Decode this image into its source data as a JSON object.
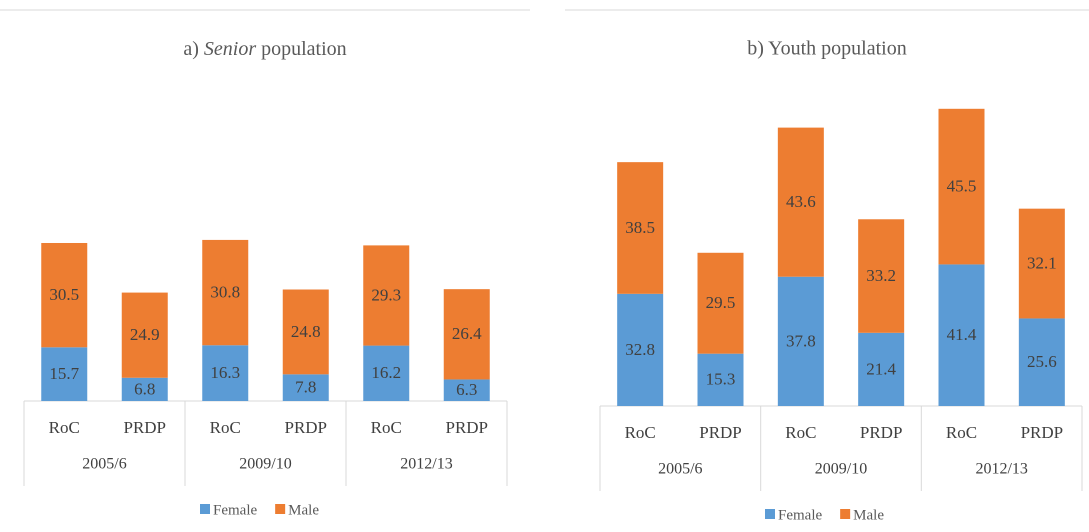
{
  "chart_data": [
    {
      "type": "stacked_bar",
      "title": [
        "a)",
        "Senior",
        "population"
      ],
      "categories": [
        "RoC",
        "PRDP",
        "RoC",
        "PRDP",
        "RoC",
        "PRDP"
      ],
      "groups": [
        "2005/6",
        "2009/10",
        "2012/13"
      ],
      "series": [
        {
          "name": "Female",
          "color": "#5b9bd5",
          "values": [
            15.7,
            6.8,
            16.3,
            7.8,
            16.2,
            6.3
          ]
        },
        {
          "name": "Male",
          "color": "#ed7d31",
          "values": [
            30.5,
            24.9,
            30.8,
            24.8,
            29.3,
            26.4
          ]
        }
      ]
    },
    {
      "type": "stacked_bar",
      "title": [
        "b) Youth population"
      ],
      "categories": [
        "RoC",
        "PRDP",
        "RoC",
        "PRDP",
        "RoC",
        "PRDP"
      ],
      "groups": [
        "2005/6",
        "2009/10",
        "2012/13"
      ],
      "series": [
        {
          "name": "Female",
          "color": "#5b9bd5",
          "values": [
            32.8,
            15.3,
            37.8,
            21.4,
            41.4,
            25.6
          ]
        },
        {
          "name": "Male",
          "color": "#ed7d31",
          "values": [
            38.5,
            29.5,
            43.6,
            33.2,
            45.5,
            32.1
          ]
        }
      ]
    }
  ]
}
